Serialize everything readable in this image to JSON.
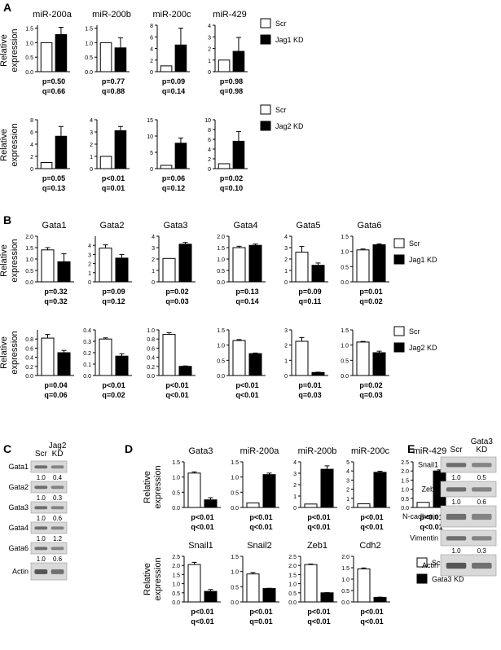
{
  "figure_labels": {
    "A": "A",
    "B": "B",
    "C": "C",
    "D": "D",
    "E": "E"
  },
  "axis_label_line1": "Relative",
  "axis_label_line2": "expression",
  "legends": {
    "jag1": {
      "scr": "Scr",
      "kd": "Jag1 KD"
    },
    "jag2": {
      "scr": "Scr",
      "kd": "Jag2 KD"
    },
    "gata3": {
      "scr": "Scr",
      "kd": "Gata3 KD"
    }
  },
  "blot_c": {
    "col_headers": [
      "Scr",
      "Jag2",
      "KD"
    ],
    "rows": [
      {
        "label": "Gata1",
        "values": [
          "1.0",
          "0.4"
        ]
      },
      {
        "label": "Gata2",
        "values": [
          "1.0",
          "0.3"
        ]
      },
      {
        "label": "Gata3",
        "values": [
          "1.0",
          "0.6"
        ]
      },
      {
        "label": "Gata4",
        "values": [
          "1.0",
          "1.2"
        ]
      },
      {
        "label": "Gata6",
        "values": [
          "1.0",
          "0.6"
        ]
      },
      {
        "label": "Actin",
        "values": [
          "",
          ""
        ]
      }
    ]
  },
  "blot_e": {
    "col_headers": [
      "Scr",
      "Gata3",
      "KD"
    ],
    "rows": [
      {
        "label": "Snail1",
        "values": [
          "1.0",
          "0.5"
        ]
      },
      {
        "label": "Zeb1",
        "values": [
          "1.0",
          "0.6"
        ]
      },
      {
        "label": "N-cadherin",
        "values": [
          "",
          ""
        ]
      },
      {
        "label": "Vimentin",
        "values": [
          "1.0",
          "0.3"
        ]
      },
      {
        "label": "Actin",
        "values": [
          "",
          ""
        ]
      }
    ]
  },
  "chart_data": [
    {
      "type": "bar",
      "panel": "A",
      "title": "miR-200a",
      "categories": [
        "Scr",
        "Jag1 KD"
      ],
      "values": [
        1.0,
        1.28
      ],
      "errors": [
        0,
        0.25
      ],
      "ylim": [
        0,
        1.6
      ],
      "yticks": [
        "0.0",
        "0.5",
        "1.0",
        "1.5"
      ],
      "stats": [
        "p=0.50",
        "q=0.66"
      ]
    },
    {
      "type": "bar",
      "panel": "A",
      "title": "miR-200b",
      "categories": [
        "Scr",
        "Jag1 KD"
      ],
      "values": [
        1.0,
        0.82
      ],
      "errors": [
        0,
        0.35
      ],
      "ylim": [
        0,
        1.6
      ],
      "yticks": [
        "0.0",
        "0.5",
        "1.0",
        "1.5"
      ],
      "stats": [
        "p=0.77",
        "q=0.88"
      ]
    },
    {
      "type": "bar",
      "panel": "A",
      "title": "miR-200c",
      "categories": [
        "Scr",
        "Jag1 KD"
      ],
      "values": [
        1.0,
        4.6
      ],
      "errors": [
        0,
        2.9
      ],
      "ylim": [
        0,
        8
      ],
      "yticks": [
        "0",
        "2",
        "4",
        "6",
        "8"
      ],
      "stats": [
        "p=0.09",
        "q=0.14"
      ]
    },
    {
      "type": "bar",
      "panel": "A",
      "title": "miR-429",
      "categories": [
        "Scr",
        "Jag1 KD"
      ],
      "values": [
        1.0,
        1.75
      ],
      "errors": [
        0,
        1.2
      ],
      "ylim": [
        0,
        4
      ],
      "yticks": [
        "0",
        "1",
        "2",
        "3",
        "4"
      ],
      "stats": [
        "p=0.98",
        "q=0.98"
      ]
    },
    {
      "type": "bar",
      "panel": "A2",
      "title": "",
      "categories": [
        "Scr",
        "Jag2 KD"
      ],
      "values": [
        1.0,
        5.3
      ],
      "errors": [
        0,
        1.6
      ],
      "ylim": [
        0,
        8
      ],
      "yticks": [
        "0",
        "2",
        "4",
        "6",
        "8"
      ],
      "stats": [
        "p=0.05",
        "q=0.13"
      ]
    },
    {
      "type": "bar",
      "panel": "A2",
      "title": "",
      "categories": [
        "Scr",
        "Jag2 KD"
      ],
      "values": [
        1.0,
        3.1
      ],
      "errors": [
        0,
        0.35
      ],
      "ylim": [
        0,
        4
      ],
      "yticks": [
        "0",
        "1",
        "2",
        "3",
        "4"
      ],
      "stats": [
        "p<0.01",
        "q=0.01"
      ]
    },
    {
      "type": "bar",
      "panel": "A2",
      "title": "",
      "categories": [
        "Scr",
        "Jag2 KD"
      ],
      "values": [
        1.0,
        7.8
      ],
      "errors": [
        0,
        1.6
      ],
      "ylim": [
        0,
        15
      ],
      "yticks": [
        "0",
        "5",
        "10",
        "15"
      ],
      "stats": [
        "p=0.06",
        "q=0.12"
      ]
    },
    {
      "type": "bar",
      "panel": "A2",
      "title": "",
      "categories": [
        "Scr",
        "Jag2 KD"
      ],
      "values": [
        1.0,
        5.6
      ],
      "errors": [
        0,
        2.0
      ],
      "ylim": [
        0,
        10
      ],
      "yticks": [
        "0",
        "2",
        "4",
        "6",
        "8",
        "10"
      ],
      "stats": [
        "p=0.02",
        "q=0.10"
      ]
    },
    {
      "type": "bar",
      "panel": "B",
      "title": "Gata1",
      "categories": [
        "Scr",
        "Jag1 KD"
      ],
      "values": [
        1.4,
        0.88
      ],
      "errors": [
        0.1,
        0.35
      ],
      "ylim": [
        0,
        2.0
      ],
      "yticks": [
        "0.0",
        "0.5",
        "1.0",
        "1.5",
        "2.0"
      ],
      "stats": [
        "p=0.32",
        "q=0.32"
      ]
    },
    {
      "type": "bar",
      "panel": "B",
      "title": "Gata2",
      "categories": [
        "Scr",
        "Jag1 KD"
      ],
      "values": [
        3.7,
        2.6
      ],
      "errors": [
        0.35,
        0.4
      ],
      "ylim": [
        0,
        5
      ],
      "yticks": [
        "0",
        "1",
        "2",
        "3",
        "4"
      ],
      "stats": [
        "p=0.09",
        "q=0.12"
      ]
    },
    {
      "type": "bar",
      "panel": "B",
      "title": "Gata3",
      "categories": [
        "Scr",
        "Jag1 KD"
      ],
      "values": [
        2.05,
        3.3
      ],
      "errors": [
        0,
        0.15
      ],
      "ylim": [
        0,
        4
      ],
      "yticks": [
        "0",
        "1",
        "2",
        "3",
        "4"
      ],
      "stats": [
        "p=0.02",
        "q=0.03"
      ]
    },
    {
      "type": "bar",
      "panel": "B",
      "title": "Gata4",
      "categories": [
        "Scr",
        "Jag1 KD"
      ],
      "values": [
        1.5,
        1.6
      ],
      "errors": [
        0.06,
        0.06
      ],
      "ylim": [
        0,
        2.0
      ],
      "yticks": [
        "0.0",
        "0.5",
        "1.0",
        "1.5",
        "2.0"
      ],
      "stats": [
        "p=0.13",
        "q=0.14"
      ]
    },
    {
      "type": "bar",
      "panel": "B",
      "title": "Gata5",
      "categories": [
        "Scr",
        "Jag1 KD"
      ],
      "values": [
        2.6,
        1.45
      ],
      "errors": [
        0.5,
        0.2
      ],
      "ylim": [
        0,
        4
      ],
      "yticks": [
        "0",
        "1",
        "2",
        "3",
        "4"
      ],
      "stats": [
        "p=0.09",
        "q=0.11"
      ]
    },
    {
      "type": "bar",
      "panel": "B",
      "title": "Gata6",
      "categories": [
        "Scr",
        "Jag1 KD"
      ],
      "values": [
        1.05,
        1.22
      ],
      "errors": [
        0.03,
        0.03
      ],
      "ylim": [
        0,
        1.5
      ],
      "yticks": [
        "0.0",
        "0.5",
        "1.0",
        "1.5"
      ],
      "stats": [
        "p=0.01",
        "q=0.02"
      ]
    },
    {
      "type": "bar",
      "panel": "B2",
      "title": "",
      "categories": [
        "Scr",
        "Jag2 KD"
      ],
      "values": [
        0.82,
        0.5
      ],
      "errors": [
        0.08,
        0.05
      ],
      "ylim": [
        0,
        1.0
      ],
      "yticks": [
        "0.0",
        "0.2",
        "0.4",
        "0.6",
        "0.8"
      ],
      "stats": [
        "p=0.04",
        "q=0.06"
      ]
    },
    {
      "type": "bar",
      "panel": "B2",
      "title": "",
      "categories": [
        "Scr",
        "Jag2 KD"
      ],
      "values": [
        0.32,
        0.17
      ],
      "errors": [
        0.01,
        0.02
      ],
      "ylim": [
        0,
        0.4
      ],
      "yticks": [
        "0.0",
        "0.1",
        "0.2",
        "0.3",
        "0.4"
      ],
      "stats": [
        "p<0.01",
        "q=0.02"
      ]
    },
    {
      "type": "bar",
      "panel": "B2",
      "title": "",
      "categories": [
        "Scr",
        "Jag2 KD"
      ],
      "values": [
        0.9,
        0.2
      ],
      "errors": [
        0.04,
        0.01
      ],
      "ylim": [
        0,
        1.0
      ],
      "yticks": [
        "0.0",
        "0.2",
        "0.4",
        "0.6",
        "0.8",
        "1.0"
      ],
      "stats": [
        "p<0.01",
        "q<0.01"
      ]
    },
    {
      "type": "bar",
      "panel": "B2",
      "title": "",
      "categories": [
        "Scr",
        "Jag2 KD"
      ],
      "values": [
        1.15,
        0.72
      ],
      "errors": [
        0.03,
        0.02
      ],
      "ylim": [
        0,
        1.5
      ],
      "yticks": [
        "0.0",
        "0.5",
        "1.0",
        "1.5"
      ],
      "stats": [
        "p<0.01",
        "q<0.01"
      ]
    },
    {
      "type": "bar",
      "panel": "B2",
      "title": "",
      "categories": [
        "Scr",
        "Jag2 KD"
      ],
      "values": [
        2.25,
        0.2
      ],
      "errors": [
        0.25,
        0.02
      ],
      "ylim": [
        0,
        3
      ],
      "yticks": [
        "0",
        "1",
        "2",
        "3"
      ],
      "stats": [
        "p=0.01",
        "q=0.03"
      ]
    },
    {
      "type": "bar",
      "panel": "B2",
      "title": "",
      "categories": [
        "Scr",
        "Jag2 KD"
      ],
      "values": [
        1.1,
        0.75
      ],
      "errors": [
        0.02,
        0.05
      ],
      "ylim": [
        0,
        1.5
      ],
      "yticks": [
        "0.0",
        "0.5",
        "1.0",
        "1.5"
      ],
      "stats": [
        "p=0.02",
        "q=0.03"
      ]
    },
    {
      "type": "bar",
      "panel": "D",
      "title": "Gata3",
      "categories": [
        "Scr",
        "Gata3 KD"
      ],
      "values": [
        1.13,
        0.25
      ],
      "errors": [
        0.04,
        0.07
      ],
      "ylim": [
        0,
        1.5
      ],
      "yticks": [
        "0.0",
        "0.5",
        "1.0",
        "1.5"
      ],
      "stats": [
        "p<0.01",
        "q<0.01"
      ]
    },
    {
      "type": "bar",
      "panel": "D",
      "title": "miR-200a",
      "categories": [
        "Scr",
        "Gata3 KD"
      ],
      "values": [
        0.15,
        1.08
      ],
      "errors": [
        0,
        0.05
      ],
      "ylim": [
        0,
        1.5
      ],
      "yticks": [
        "0.0",
        "0.5",
        "1.0",
        "1.5"
      ],
      "stats": [
        "p<0.01",
        "q<0.01"
      ]
    },
    {
      "type": "bar",
      "panel": "D",
      "title": "miR-200b",
      "categories": [
        "Scr",
        "Gata3 KD"
      ],
      "values": [
        0.3,
        3.35
      ],
      "errors": [
        0,
        0.3
      ],
      "ylim": [
        0,
        4
      ],
      "yticks": [
        "0",
        "1",
        "2",
        "3",
        "4"
      ],
      "stats": [
        "p<0.01",
        "q<0.01"
      ]
    },
    {
      "type": "bar",
      "panel": "D",
      "title": "miR-200c",
      "categories": [
        "Scr",
        "Gata3 KD"
      ],
      "values": [
        0.4,
        3.85
      ],
      "errors": [
        0,
        0.12
      ],
      "ylim": [
        0,
        5
      ],
      "yticks": [
        "0",
        "1",
        "2",
        "3",
        "4",
        "5"
      ],
      "stats": [
        "p<0.01",
        "q<0.01"
      ]
    },
    {
      "type": "bar",
      "panel": "D",
      "title": "miR-429",
      "categories": [
        "Scr",
        "Gata3 KD"
      ],
      "values": [
        0.28,
        2.0
      ],
      "errors": [
        0,
        0.06
      ],
      "ylim": [
        0,
        2.5
      ],
      "yticks": [
        "0.0",
        "0.5",
        "1.0",
        "1.5",
        "2.0",
        "2.5"
      ],
      "stats": [
        "p<0.01",
        "q<0.01"
      ]
    },
    {
      "type": "bar",
      "panel": "D2",
      "title": "Snail1",
      "categories": [
        "Scr",
        "Gata3 KD"
      ],
      "values": [
        2.05,
        0.58
      ],
      "errors": [
        0.12,
        0.1
      ],
      "ylim": [
        0,
        2.5
      ],
      "yticks": [
        "0.0",
        "0.5",
        "1.0",
        "1.5",
        "2.0",
        "2.5"
      ],
      "stats": [
        "p<0.01",
        "q<0.01"
      ]
    },
    {
      "type": "bar",
      "panel": "D2",
      "title": "Snail2",
      "categories": [
        "Scr",
        "Gata3 KD"
      ],
      "values": [
        0.92,
        0.44
      ],
      "errors": [
        0.05,
        0.01
      ],
      "ylim": [
        0,
        1.5
      ],
      "yticks": [
        "0.0",
        "0.5",
        "1.0",
        "1.5"
      ],
      "stats": [
        "p<0.01",
        "q=0.01"
      ]
    },
    {
      "type": "bar",
      "panel": "D2",
      "title": "Zeb1",
      "categories": [
        "Scr",
        "Gata3 KD"
      ],
      "values": [
        2.05,
        0.5
      ],
      "errors": [
        0.03,
        0.01
      ],
      "ylim": [
        0,
        2.5
      ],
      "yticks": [
        "0.0",
        "0.5",
        "1.0",
        "1.5",
        "2.0",
        "2.5"
      ],
      "stats": [
        "p<0.01",
        "q<0.01"
      ]
    },
    {
      "type": "bar",
      "panel": "D2",
      "title": "Cdh2",
      "categories": [
        "Scr",
        "Gata3 KD"
      ],
      "values": [
        1.45,
        0.2
      ],
      "errors": [
        0.04,
        0.01
      ],
      "ylim": [
        0,
        2.0
      ],
      "yticks": [
        "0.0",
        "0.5",
        "1.0",
        "1.5",
        "2.0"
      ],
      "stats": [
        "p<0.01",
        "q<0.01"
      ]
    }
  ]
}
